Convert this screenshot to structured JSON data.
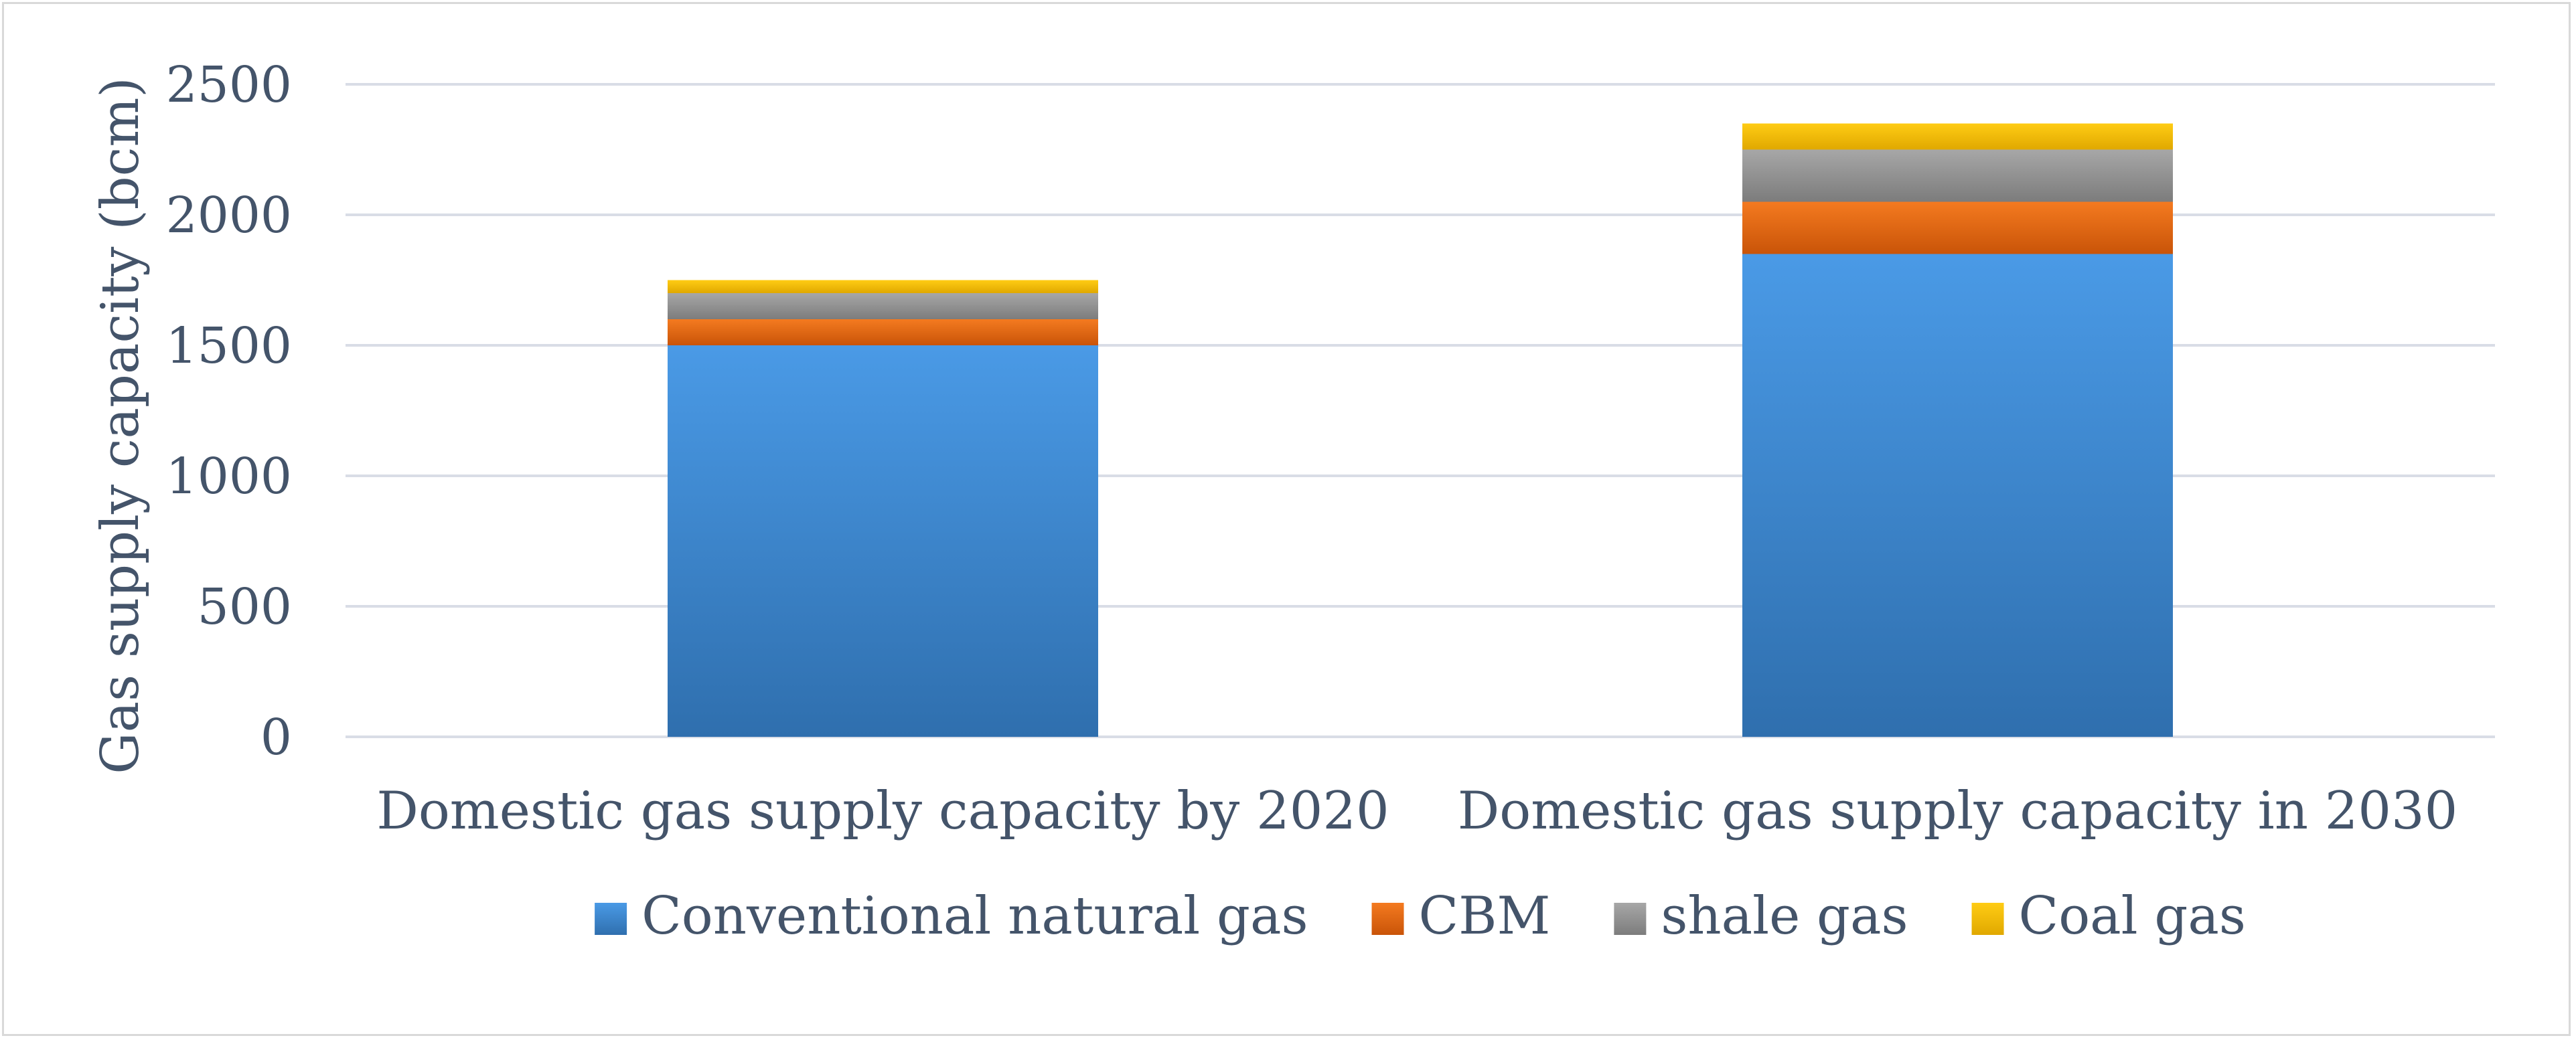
{
  "chart_data": {
    "type": "bar",
    "stacked": true,
    "title": "",
    "xlabel": "",
    "ylabel": "Gas supply capacity (bcm)",
    "ylim": [
      0,
      2500
    ],
    "yticks": [
      0,
      500,
      1000,
      1500,
      2000,
      2500
    ],
    "grid": true,
    "legend_position": "bottom",
    "categories": [
      "Domestic gas supply capacity by 2020",
      "Domestic gas supply capacity in 2030"
    ],
    "series": [
      {
        "name": "Conventional natural gas",
        "values": [
          1500,
          1850
        ]
      },
      {
        "name": "CBM",
        "values": [
          100,
          200
        ]
      },
      {
        "name": "shale gas",
        "values": [
          100,
          200
        ]
      },
      {
        "name": "Coal gas",
        "values": [
          50,
          100
        ]
      }
    ]
  },
  "colors": {
    "series": [
      [
        "#4a9ae6",
        "#2f6fae"
      ],
      [
        "#f47a20",
        "#c95408"
      ],
      [
        "#a7a7a7",
        "#7c7c7c"
      ],
      [
        "#ffcc14",
        "#e0a800"
      ]
    ],
    "gridline": "#d9dde6",
    "axis_text": "#44546a"
  }
}
